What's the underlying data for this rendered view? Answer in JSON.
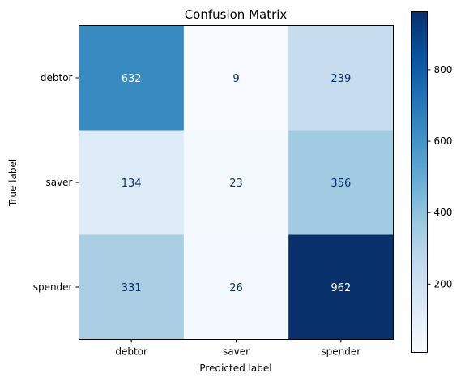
{
  "chart_data": {
    "type": "heatmap",
    "title": "Confusion Matrix",
    "xlabel": "Predicted label",
    "ylabel": "True label",
    "x_categories": [
      "debtor",
      "saver",
      "spender"
    ],
    "y_categories": [
      "debtor",
      "saver",
      "spender"
    ],
    "values": [
      [
        632,
        9,
        239
      ],
      [
        134,
        23,
        356
      ],
      [
        331,
        26,
        962
      ]
    ],
    "colormap": "Blues",
    "value_range": [
      9,
      962
    ],
    "colorbar_ticks": [
      200,
      400,
      600,
      800
    ],
    "grid": false
  }
}
